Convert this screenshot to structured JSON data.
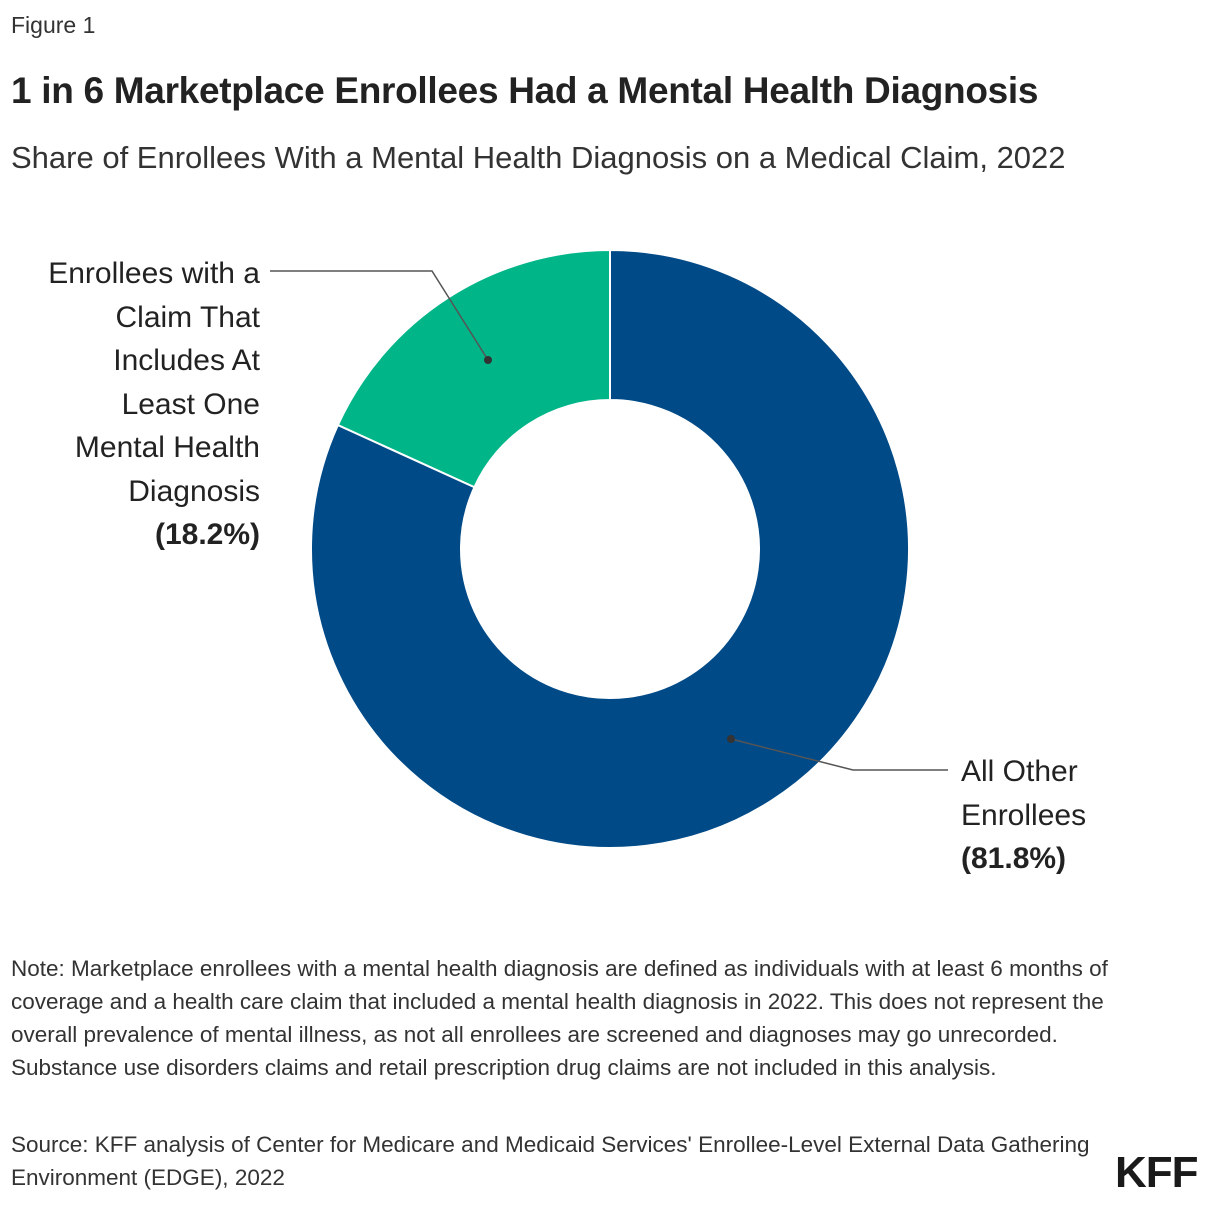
{
  "figure_label": "Figure 1",
  "logo": "KFF",
  "chart_data": {
    "type": "pie",
    "variant": "donut",
    "title": "1 in 6 Marketplace Enrollees Had a Mental Health Diagnosis",
    "subtitle": "Share of Enrollees With a Mental Health Diagnosis on a Medical Claim, 2022",
    "slices": [
      {
        "name": "Enrollees with a Claim That Includes At Least One Mental Health Diagnosis",
        "value": 18.2,
        "label_value": "(18.2%)",
        "color": "#00b588"
      },
      {
        "name": "All Other Enrollees",
        "value": 81.8,
        "label_value": "(81.8%)",
        "color": "#004a87"
      }
    ],
    "label_lines": {
      "green": [
        "Enrollees with a",
        "Claim That",
        "Includes At",
        "Least One",
        "Mental Health",
        "Diagnosis"
      ],
      "blue": [
        "All Other",
        "Enrollees"
      ]
    }
  },
  "note": "Note: Marketplace enrollees with a mental health diagnosis are defined as individuals with at least 6 months of coverage and a health care claim that included a mental health diagnosis in 2022. This does not represent the overall prevalence of mental illness, as not all enrollees are screened and diagnoses may go unrecorded. Substance use disorders claims and retail prescription drug claims are not included in this analysis.",
  "source": "Source: KFF analysis of Center for Medicare and Medicaid Services' Enrollee-Level External Data Gathering Environment (EDGE), 2022"
}
